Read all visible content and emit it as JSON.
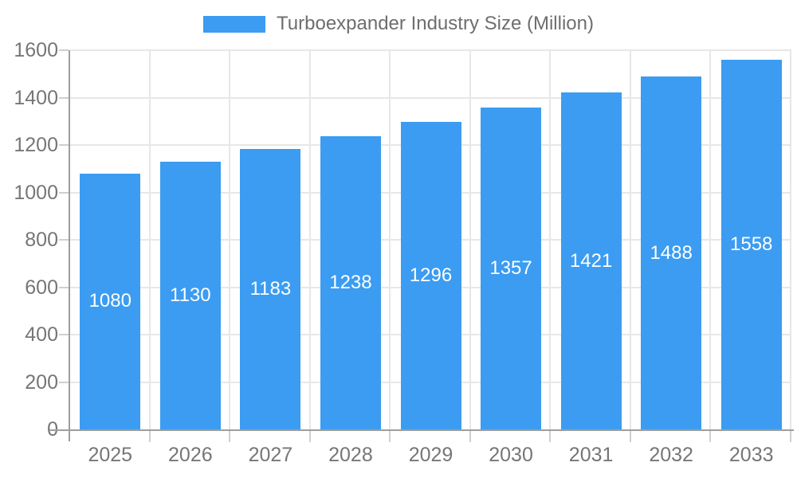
{
  "chart_data": {
    "type": "bar",
    "title": "",
    "series_name": "Turboexpander Industry Size (Million)",
    "categories": [
      "2025",
      "2026",
      "2027",
      "2028",
      "2029",
      "2030",
      "2031",
      "2032",
      "2033"
    ],
    "values": [
      1080,
      1130,
      1183,
      1238,
      1296,
      1357,
      1421,
      1488,
      1558
    ],
    "xlabel": "",
    "ylabel": "",
    "ylim": [
      0,
      1600
    ],
    "yticks": [
      0,
      200,
      400,
      600,
      800,
      1000,
      1200,
      1400,
      1600
    ],
    "grid": true,
    "legend_position": "top",
    "colors": {
      "bar": "#3B9CF2",
      "bar_value_label": "#FFFFFF",
      "grid_line": "#E7E7E7",
      "axis_line": "#9E9E9E",
      "tick_mark": "#CFCFCF",
      "tick_label": "#767676",
      "legend_text": "#6E6E6E",
      "background": "#FFFFFF"
    }
  }
}
